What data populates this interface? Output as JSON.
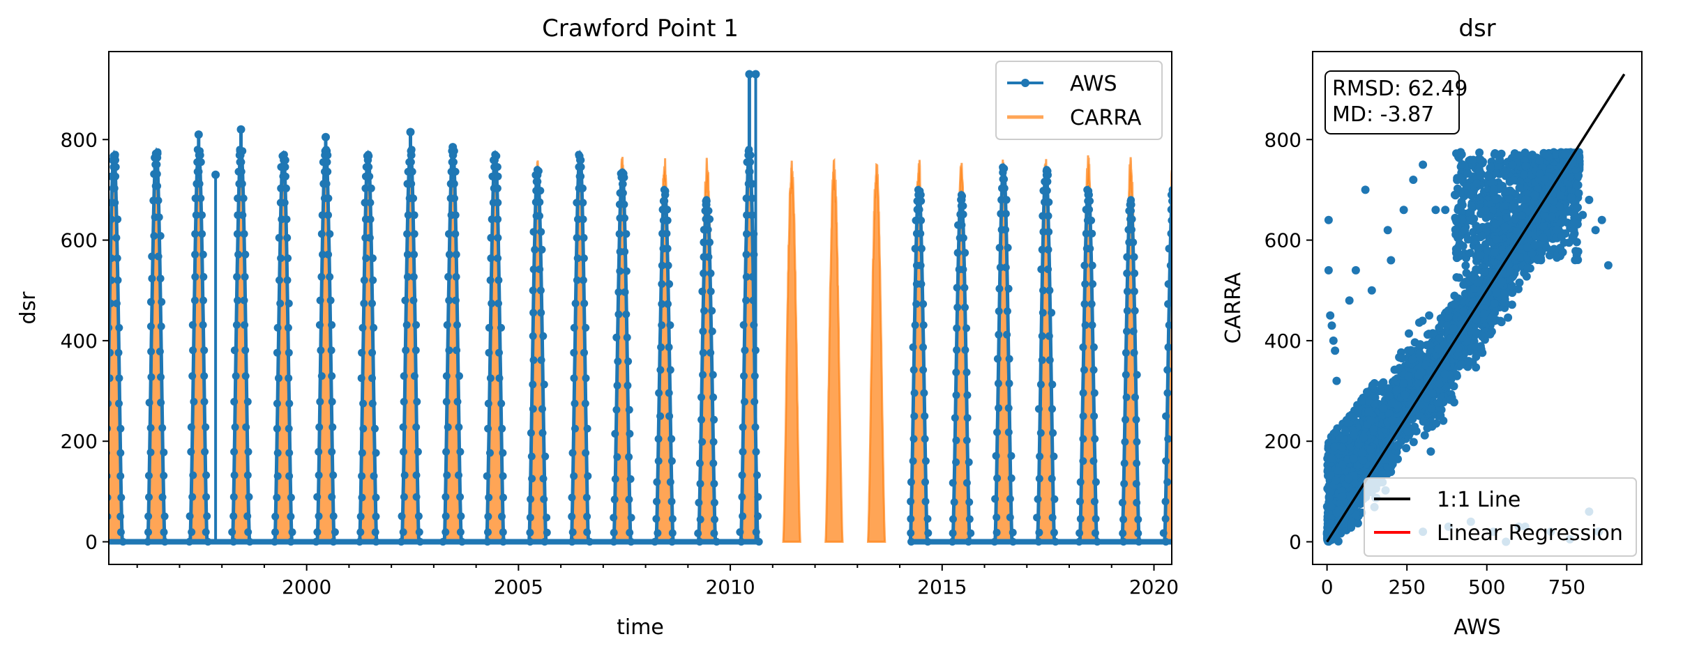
{
  "chart_data": [
    {
      "type": "line",
      "title": "Crawford Point 1",
      "xlabel": "time",
      "ylabel": "dsr",
      "xlim": [
        1995.33,
        2020.42
      ],
      "ylim": [
        -45,
        975
      ],
      "xticks": [
        2000,
        2005,
        2010,
        2015,
        2020
      ],
      "xtick_labels": [
        "2000",
        "2005",
        "2010",
        "2015",
        "2020"
      ],
      "yticks": [
        0,
        200,
        400,
        600,
        800
      ],
      "ytick_labels": [
        "0",
        "200",
        "400",
        "600",
        "800"
      ],
      "legend": {
        "placement": "top-right",
        "entries": [
          "AWS",
          "CARRA"
        ]
      },
      "grid": false,
      "series": [
        {
          "name": "AWS",
          "color": "#1f77b4",
          "style": "line-with-dot-markers",
          "annual_summer_peaks": [
            {
              "year": 1995,
              "peak": 770
            },
            {
              "year": 1996,
              "peak": 775
            },
            {
              "year": 1997,
              "peak": 810
            },
            {
              "year": 1998,
              "peak": 820
            },
            {
              "year": 1999,
              "peak": 770
            },
            {
              "year": 2000,
              "peak": 805
            },
            {
              "year": 2001,
              "peak": 770
            },
            {
              "year": 2002,
              "peak": 815
            },
            {
              "year": 2003,
              "peak": 785
            },
            {
              "year": 2004,
              "peak": 770
            },
            {
              "year": 2005,
              "peak": 740
            },
            {
              "year": 2006,
              "peak": 770
            },
            {
              "year": 2007,
              "peak": 735
            },
            {
              "year": 2008,
              "peak": 700
            },
            {
              "year": 2009,
              "peak": 680
            },
            {
              "year": 2010,
              "peak": 930
            },
            {
              "year": 2014,
              "peak": 700
            },
            {
              "year": 2015,
              "peak": 690
            },
            {
              "year": 2016,
              "peak": 745
            },
            {
              "year": 2017,
              "peak": 740
            },
            {
              "year": 2018,
              "peak": 700
            },
            {
              "year": 2019,
              "peak": 680
            },
            {
              "year": 2020,
              "peak": 700
            }
          ],
          "missing_years": [
            2011,
            2012,
            2013
          ],
          "spikes": [
            {
              "year": 1997.85,
              "value": 730
            },
            {
              "year": 2010.6,
              "value": 930
            }
          ]
        },
        {
          "name": "CARRA",
          "color": "#ff7f0e",
          "opacity": 0.7,
          "style": "filled-line",
          "annual_summer_peaks": [
            {
              "year": 1995,
              "peak": 760
            },
            {
              "year": 1996,
              "peak": 770
            },
            {
              "year": 1997,
              "peak": 765
            },
            {
              "year": 1998,
              "peak": 770
            },
            {
              "year": 1999,
              "peak": 765
            },
            {
              "year": 2000,
              "peak": 770
            },
            {
              "year": 2001,
              "peak": 770
            },
            {
              "year": 2002,
              "peak": 770
            },
            {
              "year": 2003,
              "peak": 770
            },
            {
              "year": 2004,
              "peak": 760
            },
            {
              "year": 2005,
              "peak": 760
            },
            {
              "year": 2006,
              "peak": 760
            },
            {
              "year": 2007,
              "peak": 770
            },
            {
              "year": 2008,
              "peak": 770
            },
            {
              "year": 2009,
              "peak": 770
            },
            {
              "year": 2010,
              "peak": 765
            },
            {
              "year": 2011,
              "peak": 760
            },
            {
              "year": 2012,
              "peak": 760
            },
            {
              "year": 2013,
              "peak": 765
            },
            {
              "year": 2014,
              "peak": 770
            },
            {
              "year": 2015,
              "peak": 770
            },
            {
              "year": 2016,
              "peak": 770
            },
            {
              "year": 2017,
              "peak": 770
            },
            {
              "year": 2018,
              "peak": 770
            },
            {
              "year": 2019,
              "peak": 770
            },
            {
              "year": 2020,
              "peak": 770
            }
          ]
        }
      ]
    },
    {
      "type": "scatter",
      "title": "dsr",
      "xlabel": "AWS",
      "ylabel": "CARRA",
      "xlim": [
        -45,
        985
      ],
      "ylim": [
        -45,
        975
      ],
      "xticks": [
        0,
        250,
        500,
        750
      ],
      "xtick_labels": [
        "0",
        "250",
        "500",
        "750"
      ],
      "yticks": [
        0,
        200,
        400,
        600,
        800
      ],
      "ytick_labels": [
        "0",
        "200",
        "400",
        "600",
        "800"
      ],
      "grid": false,
      "annotation": {
        "lines": [
          "RMSD: 62.49",
          "MD: -3.87"
        ],
        "placement": "top-left"
      },
      "legend": {
        "placement": "bottom-right",
        "entries": [
          "1:1 Line",
          "Linear Regression"
        ]
      },
      "lines": [
        {
          "name": "1:1 Line",
          "color": "#000000",
          "from": [
            0,
            0
          ],
          "to": [
            930,
            930
          ]
        },
        {
          "name": "Linear Regression",
          "color": "#ff0000"
        }
      ],
      "points_color": "#1f77b4",
      "outlier_points": [
        [
          5,
          640
        ],
        [
          5,
          540
        ],
        [
          10,
          450
        ],
        [
          15,
          430
        ],
        [
          20,
          400
        ],
        [
          25,
          380
        ],
        [
          30,
          320
        ],
        [
          120,
          700
        ],
        [
          190,
          620
        ],
        [
          240,
          660
        ],
        [
          270,
          720
        ],
        [
          300,
          750
        ],
        [
          340,
          660
        ],
        [
          370,
          660
        ],
        [
          400,
          690
        ],
        [
          420,
          670
        ],
        [
          450,
          690
        ],
        [
          480,
          760
        ],
        [
          540,
          760
        ],
        [
          580,
          750
        ],
        [
          650,
          690
        ],
        [
          800,
          650
        ],
        [
          820,
          680
        ],
        [
          840,
          620
        ],
        [
          860,
          640
        ],
        [
          880,
          550
        ],
        [
          650,
          590
        ],
        [
          200,
          560
        ],
        [
          140,
          500
        ],
        [
          90,
          540
        ],
        [
          70,
          480
        ],
        [
          300,
          20
        ],
        [
          380,
          30
        ],
        [
          450,
          40
        ],
        [
          520,
          20
        ],
        [
          600,
          30
        ],
        [
          700,
          20
        ],
        [
          560,
          0
        ],
        [
          620,
          30
        ],
        [
          760,
          5
        ],
        [
          820,
          60
        ],
        [
          850,
          20
        ]
      ]
    }
  ]
}
